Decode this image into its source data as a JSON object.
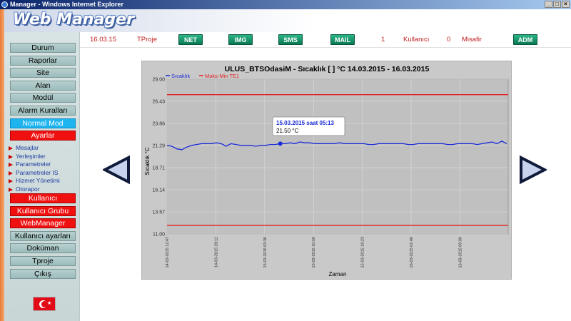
{
  "window": {
    "title": "Manager - Windows Internet Explorer"
  },
  "logo": {
    "text": "Web Manager"
  },
  "topbar": {
    "date": "16.03.15",
    "project": "TProje",
    "buttons": {
      "net": "NET",
      "img": "IMG",
      "sms": "SMS",
      "mail": "MAIL",
      "adm": "ADM"
    },
    "user_count": "1",
    "user_label": "Kullanıcı",
    "guest_count": "0",
    "guest_label": "Misafir"
  },
  "sidebar": {
    "items": [
      {
        "label": "Durum",
        "style": "normal"
      },
      {
        "label": "Raporlar",
        "style": "normal"
      },
      {
        "label": "Site",
        "style": "normal"
      },
      {
        "label": "Alan",
        "style": "normal"
      },
      {
        "label": "Modül",
        "style": "normal"
      },
      {
        "label": "Alarm Kuralları",
        "style": "normal"
      },
      {
        "label": "Normal Mod",
        "style": "blue"
      },
      {
        "label": "Ayarlar",
        "style": "red"
      }
    ],
    "subitems": [
      "Mesajlar",
      "Yerleşimler",
      "Parametreler",
      "Parametreler IS",
      "Hizmet Yönetimi",
      "Otorapor"
    ],
    "items2": [
      {
        "label": "Kullanıcı",
        "style": "red"
      },
      {
        "label": "Kullanıcı Grubu",
        "style": "red"
      },
      {
        "label": "WebManager",
        "style": "red"
      },
      {
        "label": "Kullanıcı ayarları",
        "style": "normal"
      },
      {
        "label": "Doküman",
        "style": "normal"
      },
      {
        "label": "Tproje",
        "style": "normal"
      },
      {
        "label": "Çıkış",
        "style": "normal"
      }
    ]
  },
  "colors": {
    "series": "#1a2ad8",
    "limit": "#e02020",
    "plot_bg": "#c0c0c0"
  },
  "chart_data": {
    "type": "line",
    "title": "ULUS_BTSOdasiM - Sıcaklık   [  ]   °C  14.03.2015 - 16.03.2015",
    "xlabel": "Zaman",
    "ylabel": "Sıcaklık  °C",
    "ylim": [
      11.0,
      29.0
    ],
    "yticks": [
      "29.00",
      "26.43",
      "23.86",
      "21.29",
      "18.71",
      "16.14",
      "13.57",
      "11.00"
    ],
    "xticks": [
      "14-03-2015 12:47",
      "14-03-2015 20:11",
      "15-03-2015 03:36",
      "15-03-2015 10:59",
      "15-03-2015 18:23",
      "16-03-2015 01:48",
      "16-03-2015 09:09"
    ],
    "legend": {
      "placement": "top-left",
      "entries": [
        "Sıcaklık",
        "Maks-Min TE1"
      ]
    },
    "limits": {
      "max": 27.2,
      "min": 12.0
    },
    "series": [
      {
        "name": "Sıcaklık",
        "values": [
          21.3,
          21.2,
          20.9,
          20.8,
          21.1,
          21.3,
          21.4,
          21.5,
          21.5,
          21.5,
          21.6,
          21.5,
          21.2,
          21.5,
          21.4,
          21.3,
          21.3,
          21.3,
          21.2,
          21.3,
          21.3,
          21.4,
          21.4,
          21.5,
          21.5,
          21.6,
          21.5,
          21.7,
          21.6,
          21.6,
          21.5,
          21.5,
          21.5,
          21.5,
          21.5,
          21.6,
          21.5,
          21.5,
          21.5,
          21.5,
          21.5,
          21.4,
          21.4,
          21.5,
          21.5,
          21.5,
          21.5,
          21.5,
          21.5,
          21.4,
          21.4,
          21.5,
          21.5,
          21.5,
          21.5,
          21.5,
          21.5,
          21.4,
          21.4,
          21.5,
          21.5,
          21.5,
          21.5,
          21.4,
          21.5,
          21.6,
          21.7,
          21.5,
          21.8,
          21.5
        ]
      }
    ],
    "tooltip": {
      "title": "15.03.2015 saat 05:13",
      "value": "21.50 °C",
      "index": 23
    }
  }
}
